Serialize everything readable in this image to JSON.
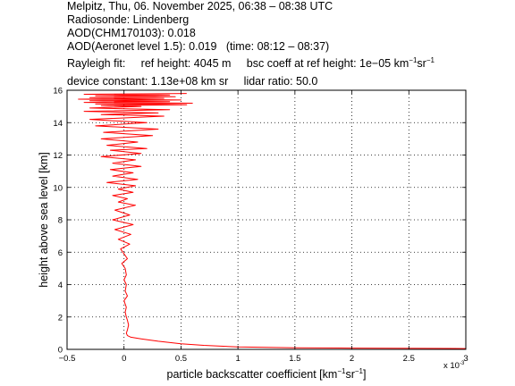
{
  "header": {
    "line1": "Melpitz, Thu, 06. November 2025, 06:38 – 08:38 UTC",
    "line2": "Radiosonde: Lindenberg",
    "line3": "AOD(CHM170103): 0.018",
    "line4": "AOD(Aeronet level 1.5): 0.019   (time: 08:12 – 08:37)",
    "line5_prefix": "Rayleigh fit:     ref height: 4045 m     bsc coeff at ref height: 1e−05 km",
    "line5_sup1": "−1",
    "line5_mid": "sr",
    "line5_sup2": "−1",
    "line6": "device constant: 1.13e+08 km sr     lidar ratio: 50.0"
  },
  "chart_data": {
    "type": "line",
    "title": "",
    "xlabel_prefix": "particle backscatter coefficient [km",
    "xlabel_sup1": "−1",
    "xlabel_mid": "sr",
    "xlabel_sup2": "−1",
    "xlabel_suffix": "]",
    "ylabel": "height above sea level [km]",
    "x_multiplier_label": "x 10",
    "x_multiplier_exp": "-3",
    "xlim": [
      -0.5,
      3
    ],
    "ylim": [
      0,
      16
    ],
    "xticks": [
      -0.5,
      0,
      0.5,
      1,
      1.5,
      2,
      2.5,
      3
    ],
    "xtick_labels": [
      "−0.5",
      "0",
      "0.5",
      "1",
      "1.5",
      "2",
      "2.5",
      "3"
    ],
    "yticks": [
      0,
      2,
      4,
      6,
      8,
      10,
      12,
      14,
      16
    ],
    "ytick_labels": [
      "0",
      "2",
      "4",
      "6",
      "8",
      "10",
      "12",
      "14",
      "16"
    ],
    "grid": true,
    "line_color": "#ff0000",
    "series": [
      {
        "x": [
          3.0,
          2.0,
          1.5,
          1.0,
          0.7,
          0.5,
          0.3,
          0.15,
          0.06,
          0.03,
          0.02,
          0.03,
          0.04,
          0.03,
          0.02,
          0.01,
          0.02,
          0.0,
          0.03,
          0.01,
          0.02,
          0.0,
          0.02,
          0.01,
          -0.02,
          0.03,
          0.0,
          -0.03,
          0.05,
          -0.05,
          0.06,
          -0.08,
          0.08,
          -0.1,
          0.05,
          -0.08,
          0.1,
          -0.05,
          0.03,
          -0.1,
          0.08,
          -0.05,
          0.1,
          -0.15,
          0.12,
          -0.1,
          0.08,
          -0.12,
          0.15,
          -0.1,
          0.1,
          -0.2,
          0.15,
          -0.12,
          0.2,
          -0.15,
          0.12,
          -0.2,
          0.25,
          -0.18,
          0.3,
          -0.25,
          0.2,
          -0.3,
          0.35,
          -0.2,
          0.3,
          -0.35,
          0.4,
          -0.3,
          0.15,
          -0.2,
          0.55,
          -0.25,
          0.6,
          -0.35,
          0.4,
          -0.3,
          0.5,
          -0.4,
          0.35,
          -0.3,
          0.45,
          -0.25,
          0.4,
          -0.35,
          0.55
        ],
        "y": [
          0.05,
          0.08,
          0.1,
          0.15,
          0.25,
          0.35,
          0.5,
          0.65,
          0.75,
          0.85,
          1.0,
          1.2,
          1.5,
          1.8,
          2.0,
          2.3,
          2.6,
          3.0,
          3.3,
          3.6,
          4.0,
          4.3,
          4.6,
          5.0,
          5.3,
          5.6,
          5.9,
          6.2,
          6.5,
          6.8,
          7.1,
          7.4,
          7.7,
          8.0,
          8.3,
          8.6,
          8.9,
          9.1,
          9.3,
          9.5,
          9.7,
          9.9,
          10.1,
          10.3,
          10.5,
          10.7,
          10.9,
          11.1,
          11.3,
          11.5,
          11.7,
          11.9,
          12.1,
          12.3,
          12.4,
          12.6,
          12.8,
          13.0,
          13.2,
          13.4,
          13.6,
          13.8,
          14.0,
          14.2,
          14.4,
          14.5,
          14.6,
          14.7,
          14.8,
          14.9,
          15.0,
          15.05,
          15.1,
          15.15,
          15.2,
          15.25,
          15.3,
          15.35,
          15.4,
          15.45,
          15.5,
          15.55,
          15.6,
          15.65,
          15.7,
          15.75,
          15.8
        ]
      }
    ]
  }
}
